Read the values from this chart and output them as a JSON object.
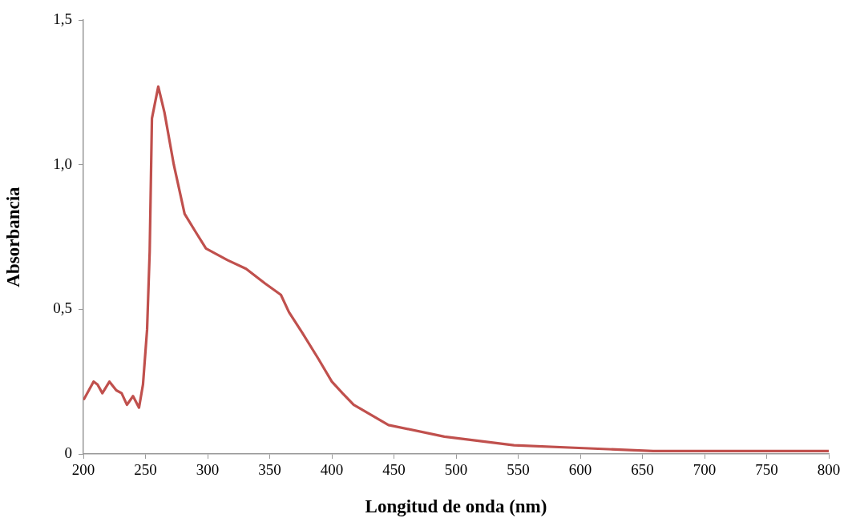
{
  "chart_data": {
    "type": "line",
    "xlabel": "Longitud de onda (nm)",
    "ylabel": "Absorbancia",
    "x": [
      200.6,
      208.2,
      211.4,
      215.3,
      221,
      226.5,
      230.8,
      235.1,
      240,
      244.8,
      248,
      251.3,
      253.4,
      255.2,
      260.3,
      265.3,
      272.8,
      281.5,
      290,
      298.7,
      316,
      331,
      346,
      359,
      365.5,
      376,
      389,
      400,
      408.6,
      417.6,
      445.6,
      490.6,
      546.6,
      602.7,
      658.7,
      714.8,
      800
    ],
    "series": [
      {
        "color": "#c0504d",
        "values": [
          0.19,
          0.25,
          0.24,
          0.21,
          0.25,
          0.22,
          0.21,
          0.17,
          0.2,
          0.16,
          0.24,
          0.43,
          0.7,
          1.16,
          1.27,
          1.18,
          1.0,
          0.83,
          0.77,
          0.71,
          0.67,
          0.64,
          0.59,
          0.55,
          0.49,
          0.42,
          0.33,
          0.25,
          0.21,
          0.17,
          0.1,
          0.06,
          0.03,
          0.02,
          0.01,
          0.01,
          0.01
        ]
      }
    ],
    "xlim": [
      200,
      800
    ],
    "xticks": [
      200,
      250,
      300,
      350,
      400,
      450,
      500,
      550,
      600,
      650,
      700,
      750,
      800
    ],
    "ylim": [
      0,
      1.5
    ],
    "yticks": [
      {
        "value": 0,
        "label": "0"
      },
      {
        "value": 0.5,
        "label": "0,5"
      },
      {
        "value": 1,
        "label": "1,0"
      },
      {
        "value": 1.5,
        "label": "1,5"
      }
    ],
    "grid": false,
    "legend": false,
    "marker": "none",
    "line_style": "solid"
  }
}
